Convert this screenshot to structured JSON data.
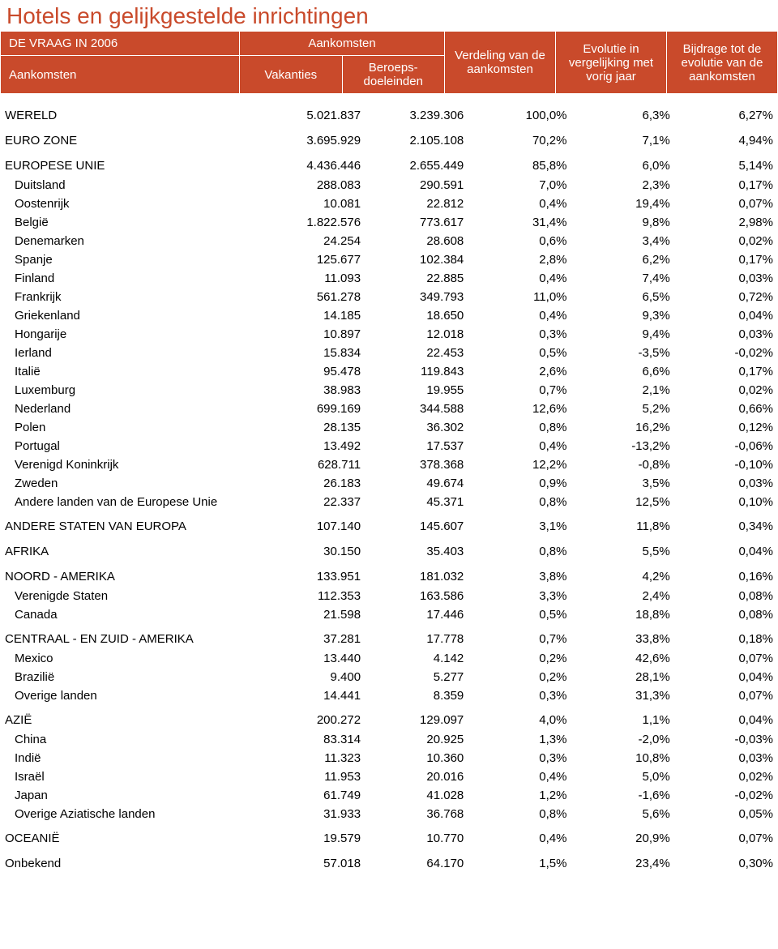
{
  "title": "Hotels en gelijkgestelde inrichtingen",
  "header": {
    "left_top": "DE VRAAG IN 2006",
    "left_bottom": "Aankomsten",
    "arrivals": "Aankomsten",
    "vacations": "Vakanties",
    "business": "Beroeps-doeleinden",
    "distribution": "Verdeling van de aankomsten",
    "evolution": "Evolutie in vergelijking met vorig jaar",
    "contribution": "Bijdrage tot de evolutie van de aankomsten"
  },
  "colors": {
    "brand": "#c94a2b",
    "brand_title": "#c94a2b",
    "text": "#000000"
  },
  "rows": [
    {
      "label": "WERELD",
      "v": "5.021.837",
      "b": "3.239.306",
      "d": "100,0%",
      "e": "6,3%",
      "c": "6,27%",
      "indent": 0,
      "section": true
    },
    {
      "label": "EURO ZONE",
      "v": "3.695.929",
      "b": "2.105.108",
      "d": "70,2%",
      "e": "7,1%",
      "c": "4,94%",
      "indent": 0,
      "section": true
    },
    {
      "label": "EUROPESE UNIE",
      "v": "4.436.446",
      "b": "2.655.449",
      "d": "85,8%",
      "e": "6,0%",
      "c": "5,14%",
      "indent": 0,
      "section": true
    },
    {
      "label": "Duitsland",
      "v": "288.083",
      "b": "290.591",
      "d": "7,0%",
      "e": "2,3%",
      "c": "0,17%",
      "indent": 1
    },
    {
      "label": "Oostenrijk",
      "v": "10.081",
      "b": "22.812",
      "d": "0,4%",
      "e": "19,4%",
      "c": "0,07%",
      "indent": 1
    },
    {
      "label": "België",
      "v": "1.822.576",
      "b": "773.617",
      "d": "31,4%",
      "e": "9,8%",
      "c": "2,98%",
      "indent": 1
    },
    {
      "label": "Denemarken",
      "v": "24.254",
      "b": "28.608",
      "d": "0,6%",
      "e": "3,4%",
      "c": "0,02%",
      "indent": 1
    },
    {
      "label": "Spanje",
      "v": "125.677",
      "b": "102.384",
      "d": "2,8%",
      "e": "6,2%",
      "c": "0,17%",
      "indent": 1
    },
    {
      "label": "Finland",
      "v": "11.093",
      "b": "22.885",
      "d": "0,4%",
      "e": "7,4%",
      "c": "0,03%",
      "indent": 1
    },
    {
      "label": "Frankrijk",
      "v": "561.278",
      "b": "349.793",
      "d": "11,0%",
      "e": "6,5%",
      "c": "0,72%",
      "indent": 1
    },
    {
      "label": "Griekenland",
      "v": "14.185",
      "b": "18.650",
      "d": "0,4%",
      "e": "9,3%",
      "c": "0,04%",
      "indent": 1
    },
    {
      "label": "Hongarije",
      "v": "10.897",
      "b": "12.018",
      "d": "0,3%",
      "e": "9,4%",
      "c": "0,03%",
      "indent": 1
    },
    {
      "label": "Ierland",
      "v": "15.834",
      "b": "22.453",
      "d": "0,5%",
      "e": "-3,5%",
      "c": "-0,02%",
      "indent": 1
    },
    {
      "label": "Italië",
      "v": "95.478",
      "b": "119.843",
      "d": "2,6%",
      "e": "6,6%",
      "c": "0,17%",
      "indent": 1
    },
    {
      "label": "Luxemburg",
      "v": "38.983",
      "b": "19.955",
      "d": "0,7%",
      "e": "2,1%",
      "c": "0,02%",
      "indent": 1
    },
    {
      "label": "Nederland",
      "v": "699.169",
      "b": "344.588",
      "d": "12,6%",
      "e": "5,2%",
      "c": "0,66%",
      "indent": 1
    },
    {
      "label": "Polen",
      "v": "28.135",
      "b": "36.302",
      "d": "0,8%",
      "e": "16,2%",
      "c": "0,12%",
      "indent": 1
    },
    {
      "label": "Portugal",
      "v": "13.492",
      "b": "17.537",
      "d": "0,4%",
      "e": "-13,2%",
      "c": "-0,06%",
      "indent": 1
    },
    {
      "label": "Verenigd Koninkrijk",
      "v": "628.711",
      "b": "378.368",
      "d": "12,2%",
      "e": "-0,8%",
      "c": "-0,10%",
      "indent": 1
    },
    {
      "label": "Zweden",
      "v": "26.183",
      "b": "49.674",
      "d": "0,9%",
      "e": "3,5%",
      "c": "0,03%",
      "indent": 1
    },
    {
      "label": "Andere landen van de Europese Unie",
      "v": "22.337",
      "b": "45.371",
      "d": "0,8%",
      "e": "12,5%",
      "c": "0,10%",
      "indent": 1
    },
    {
      "label": "ANDERE STATEN VAN EUROPA",
      "v": "107.140",
      "b": "145.607",
      "d": "3,1%",
      "e": "11,8%",
      "c": "0,34%",
      "indent": 0,
      "section": true
    },
    {
      "label": "AFRIKA",
      "v": "30.150",
      "b": "35.403",
      "d": "0,8%",
      "e": "5,5%",
      "c": "0,04%",
      "indent": 0,
      "section": true
    },
    {
      "label": "NOORD - AMERIKA",
      "v": "133.951",
      "b": "181.032",
      "d": "3,8%",
      "e": "4,2%",
      "c": "0,16%",
      "indent": 0,
      "section": true
    },
    {
      "label": "Verenigde Staten",
      "v": "112.353",
      "b": "163.586",
      "d": "3,3%",
      "e": "2,4%",
      "c": "0,08%",
      "indent": 1
    },
    {
      "label": "Canada",
      "v": "21.598",
      "b": "17.446",
      "d": "0,5%",
      "e": "18,8%",
      "c": "0,08%",
      "indent": 1
    },
    {
      "label": "CENTRAAL - EN ZUID - AMERIKA",
      "v": "37.281",
      "b": "17.778",
      "d": "0,7%",
      "e": "33,8%",
      "c": "0,18%",
      "indent": 0,
      "section": true
    },
    {
      "label": "Mexico",
      "v": "13.440",
      "b": "4.142",
      "d": "0,2%",
      "e": "42,6%",
      "c": "0,07%",
      "indent": 1
    },
    {
      "label": "Brazilië",
      "v": "9.400",
      "b": "5.277",
      "d": "0,2%",
      "e": "28,1%",
      "c": "0,04%",
      "indent": 1
    },
    {
      "label": "Overige landen",
      "v": "14.441",
      "b": "8.359",
      "d": "0,3%",
      "e": "31,3%",
      "c": "0,07%",
      "indent": 1
    },
    {
      "label": "AZIË",
      "v": "200.272",
      "b": "129.097",
      "d": "4,0%",
      "e": "1,1%",
      "c": "0,04%",
      "indent": 0,
      "section": true
    },
    {
      "label": "China",
      "v": "83.314",
      "b": "20.925",
      "d": "1,3%",
      "e": "-2,0%",
      "c": "-0,03%",
      "indent": 1
    },
    {
      "label": "Indië",
      "v": "11.323",
      "b": "10.360",
      "d": "0,3%",
      "e": "10,8%",
      "c": "0,03%",
      "indent": 1
    },
    {
      "label": "Israël",
      "v": "11.953",
      "b": "20.016",
      "d": "0,4%",
      "e": "5,0%",
      "c": "0,02%",
      "indent": 1
    },
    {
      "label": "Japan",
      "v": "61.749",
      "b": "41.028",
      "d": "1,2%",
      "e": "-1,6%",
      "c": "-0,02%",
      "indent": 1
    },
    {
      "label": "Overige Aziatische landen",
      "v": "31.933",
      "b": "36.768",
      "d": "0,8%",
      "e": "5,6%",
      "c": "0,05%",
      "indent": 1
    },
    {
      "label": "OCEANIË",
      "v": "19.579",
      "b": "10.770",
      "d": "0,4%",
      "e": "20,9%",
      "c": "0,07%",
      "indent": 0,
      "section": true
    },
    {
      "label": "Onbekend",
      "v": "57.018",
      "b": "64.170",
      "d": "1,5%",
      "e": "23,4%",
      "c": "0,30%",
      "indent": 0,
      "section": true
    }
  ]
}
